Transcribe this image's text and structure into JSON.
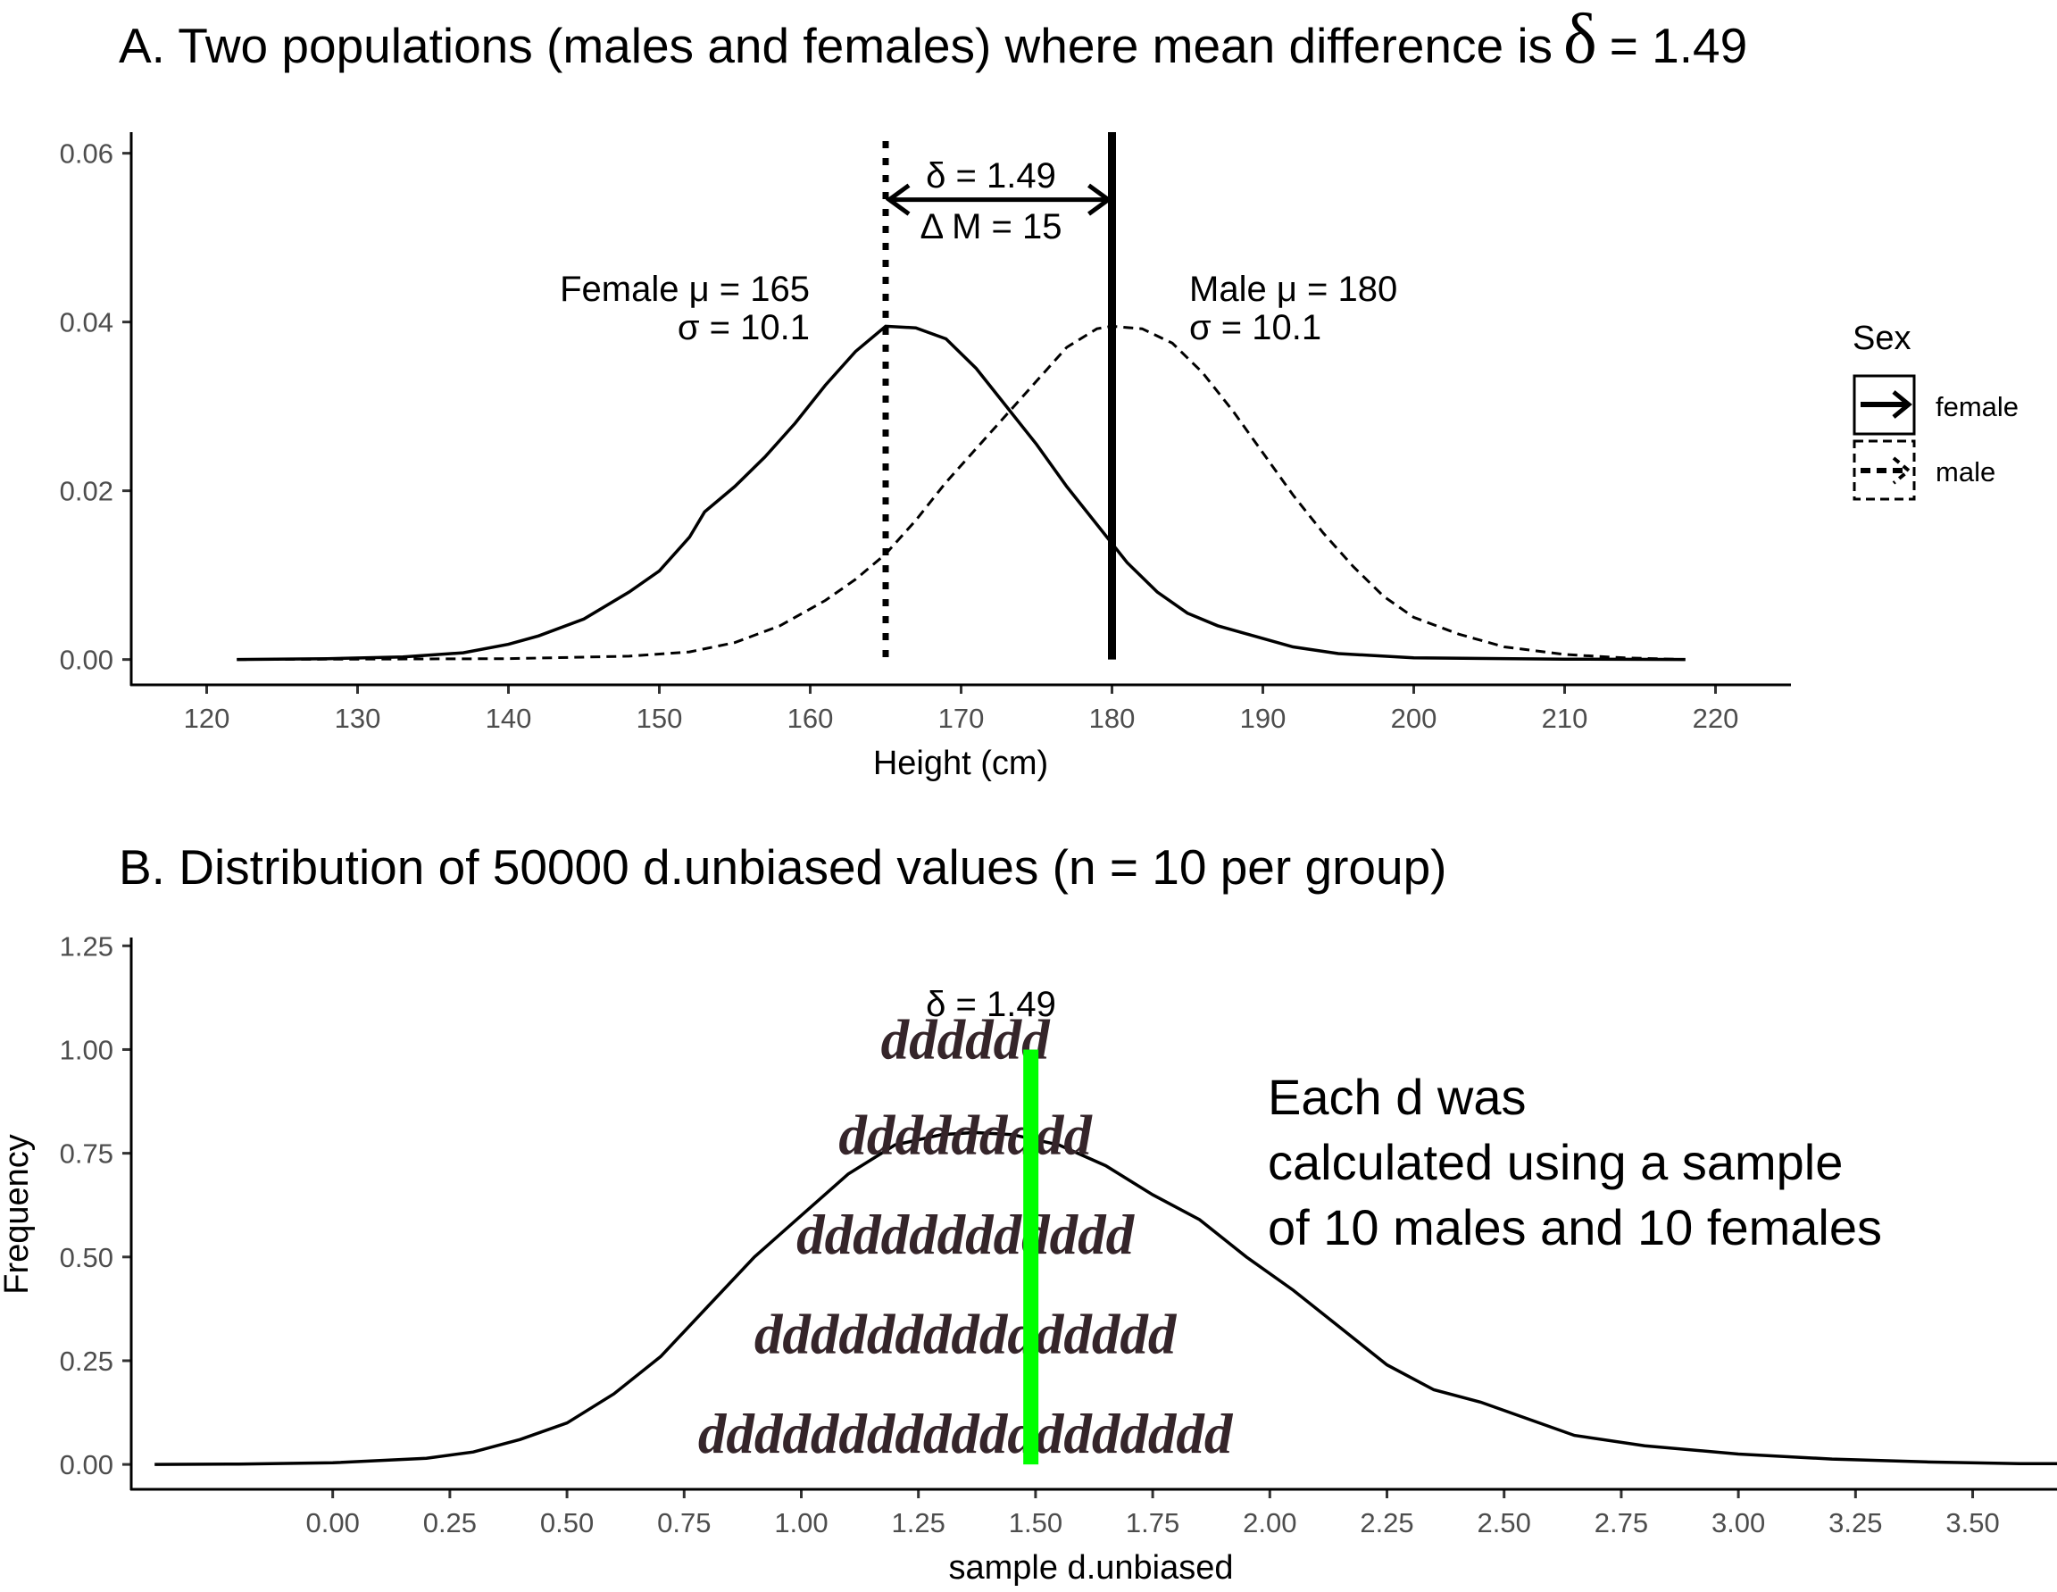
{
  "chart_data": [
    {
      "type": "line",
      "title_prefix": "A. Two populations (males and females) where mean difference is",
      "title_delta": "δ",
      "title_suffix": "= 1.49",
      "xlabel": "Height (cm)",
      "ylabel": "",
      "xlim": [
        115,
        225
      ],
      "ylim": [
        -0.003,
        0.0625
      ],
      "x_ticks": [
        "120",
        "130",
        "140",
        "150",
        "160",
        "170",
        "180",
        "190",
        "200",
        "210",
        "220"
      ],
      "y_ticks": [
        "0.00",
        "0.02",
        "0.04",
        "0.06"
      ],
      "legend": {
        "title": "Sex",
        "position": "right",
        "items": [
          {
            "label": "female",
            "linestyle": "solid"
          },
          {
            "label": "male",
            "linestyle": "dashed"
          }
        ]
      },
      "series": [
        {
          "name": "female",
          "linestyle": "solid",
          "points": [
            [
              122,
              0
            ],
            [
              128,
              0.0001
            ],
            [
              133,
              0.0003
            ],
            [
              137,
              0.0008
            ],
            [
              140,
              0.0018
            ],
            [
              142,
              0.0028
            ],
            [
              145,
              0.0048
            ],
            [
              148,
              0.008
            ],
            [
              150,
              0.0105
            ],
            [
              152,
              0.0145
            ],
            [
              153,
              0.0175
            ],
            [
              155,
              0.0205
            ],
            [
              157,
              0.024
            ],
            [
              159,
              0.028
            ],
            [
              161,
              0.0325
            ],
            [
              163,
              0.0365
            ],
            [
              165,
              0.0395
            ],
            [
              167,
              0.0393
            ],
            [
              169,
              0.038
            ],
            [
              171,
              0.0345
            ],
            [
              173,
              0.03
            ],
            [
              175,
              0.0255
            ],
            [
              177,
              0.0205
            ],
            [
              179,
              0.016
            ],
            [
              181,
              0.0115
            ],
            [
              183,
              0.008
            ],
            [
              185,
              0.0055
            ],
            [
              187,
              0.004
            ],
            [
              189,
              0.003
            ],
            [
              192,
              0.0015
            ],
            [
              195,
              0.0007
            ],
            [
              200,
              0.0002
            ],
            [
              210,
              5e-05
            ],
            [
              218,
              0
            ]
          ]
        },
        {
          "name": "male",
          "linestyle": "dashed",
          "points": [
            [
              122,
              0
            ],
            [
              140,
              0.0001
            ],
            [
              148,
              0.0004
            ],
            [
              152,
              0.0009
            ],
            [
              155,
              0.002
            ],
            [
              158,
              0.004
            ],
            [
              161,
              0.007
            ],
            [
              163,
              0.0095
            ],
            [
              165,
              0.0125
            ],
            [
              167,
              0.0165
            ],
            [
              169,
              0.021
            ],
            [
              171,
              0.025
            ],
            [
              173,
              0.029
            ],
            [
              175,
              0.033
            ],
            [
              177,
              0.037
            ],
            [
              179,
              0.0392
            ],
            [
              180,
              0.0395
            ],
            [
              182,
              0.0392
            ],
            [
              184,
              0.0375
            ],
            [
              186,
              0.034
            ],
            [
              188,
              0.0295
            ],
            [
              190,
              0.0245
            ],
            [
              192,
              0.0195
            ],
            [
              194,
              0.015
            ],
            [
              196,
              0.011
            ],
            [
              198,
              0.0075
            ],
            [
              200,
              0.005
            ],
            [
              203,
              0.003
            ],
            [
              206,
              0.0015
            ],
            [
              210,
              0.0006
            ],
            [
              214,
              0.0002
            ],
            [
              218,
              0
            ]
          ]
        }
      ],
      "vlines": [
        {
          "x": 165,
          "style": "dotted"
        },
        {
          "x": 180,
          "style": "solid"
        }
      ],
      "arrow": {
        "from": 165,
        "to": 180,
        "y": 0.0545
      },
      "annotations": {
        "delta": "δ = 1.49",
        "delta_m": "Δ M = 15",
        "female_mu": "Female μ = 165",
        "female_sigma": "σ = 10.1",
        "male_mu": "Male μ = 180",
        "male_sigma": "σ = 10.1"
      }
    },
    {
      "type": "area",
      "title": "B. Distribution of 50000 d.unbiased values (n = 10 per group)",
      "xlabel": "sample d.unbiased",
      "ylabel": "Frequency",
      "xlim": [
        -0.43,
        3.68
      ],
      "ylim": [
        -0.06,
        1.27
      ],
      "x_ticks": [
        "0.00",
        "0.25",
        "0.50",
        "0.75",
        "1.00",
        "1.25",
        "1.50",
        "1.75",
        "2.00",
        "2.25",
        "2.50",
        "2.75",
        "3.00",
        "3.25",
        "3.50"
      ],
      "y_ticks": [
        "0.00",
        "0.25",
        "0.50",
        "0.75",
        "1.00",
        "1.25"
      ],
      "series": [
        {
          "name": "",
          "linestyle": "solid",
          "points": [
            [
              -0.38,
              0
            ],
            [
              -0.2,
              0.001
            ],
            [
              0,
              0.004
            ],
            [
              0.2,
              0.015
            ],
            [
              0.3,
              0.03
            ],
            [
              0.4,
              0.06
            ],
            [
              0.5,
              0.1
            ],
            [
              0.6,
              0.17
            ],
            [
              0.7,
              0.26
            ],
            [
              0.8,
              0.38
            ],
            [
              0.9,
              0.5
            ],
            [
              1.0,
              0.6
            ],
            [
              1.1,
              0.7
            ],
            [
              1.2,
              0.77
            ],
            [
              1.3,
              0.795
            ],
            [
              1.37,
              0.8
            ],
            [
              1.45,
              0.795
            ],
            [
              1.55,
              0.77
            ],
            [
              1.65,
              0.72
            ],
            [
              1.75,
              0.65
            ],
            [
              1.85,
              0.59
            ],
            [
              1.95,
              0.5
            ],
            [
              2.05,
              0.42
            ],
            [
              2.15,
              0.33
            ],
            [
              2.25,
              0.24
            ],
            [
              2.35,
              0.18
            ],
            [
              2.45,
              0.15
            ],
            [
              2.55,
              0.11
            ],
            [
              2.65,
              0.07
            ],
            [
              2.8,
              0.045
            ],
            [
              3.0,
              0.025
            ],
            [
              3.2,
              0.013
            ],
            [
              3.4,
              0.006
            ],
            [
              3.6,
              0.002
            ],
            [
              3.68,
              0.002
            ]
          ]
        }
      ],
      "vline": {
        "x": 1.49,
        "y_from": 0,
        "y_to": 1.0,
        "color": "#00ff00"
      },
      "annotations": {
        "delta": "δ = 1.49",
        "note_lines": [
          "Each d was",
          "calculated using a sample",
          "of 10 males and 10 females"
        ]
      },
      "d_rows": [
        {
          "text": "ddddddddddddddddddd",
          "y": 0.05
        },
        {
          "text": "ddddddddddddddd",
          "y": 0.29
        },
        {
          "text": "dddddddddddd",
          "y": 0.53
        },
        {
          "text": "ddddddddd",
          "y": 0.77
        },
        {
          "text": "dddddd",
          "y": 1.0
        }
      ],
      "d_row_center_x": 1.35
    }
  ]
}
